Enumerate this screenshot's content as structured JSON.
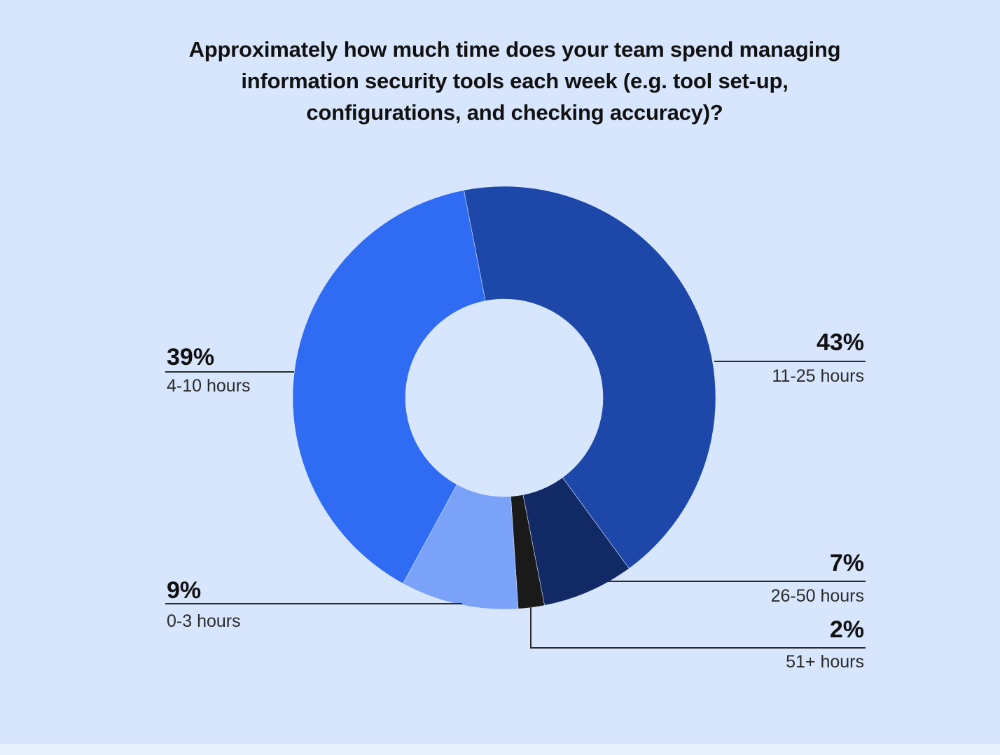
{
  "chart_data": {
    "type": "pie",
    "variant": "donut",
    "title": "Approximately how much time does your team spend managing information security tools each week (e.g. tool set-up, configurations, and checking accuracy)?",
    "categories": [
      "11-25 hours",
      "26-50 hours",
      "51+ hours",
      "0-3 hours",
      "4-10 hours"
    ],
    "values": [
      43,
      7,
      2,
      9,
      39
    ],
    "value_labels": [
      "43%",
      "7%",
      "2%",
      "9%",
      "39%"
    ],
    "colors": [
      "#1D47A8",
      "#112A66",
      "#1A1A1A",
      "#7BA2F9",
      "#306BF4"
    ],
    "legend": "none"
  }
}
